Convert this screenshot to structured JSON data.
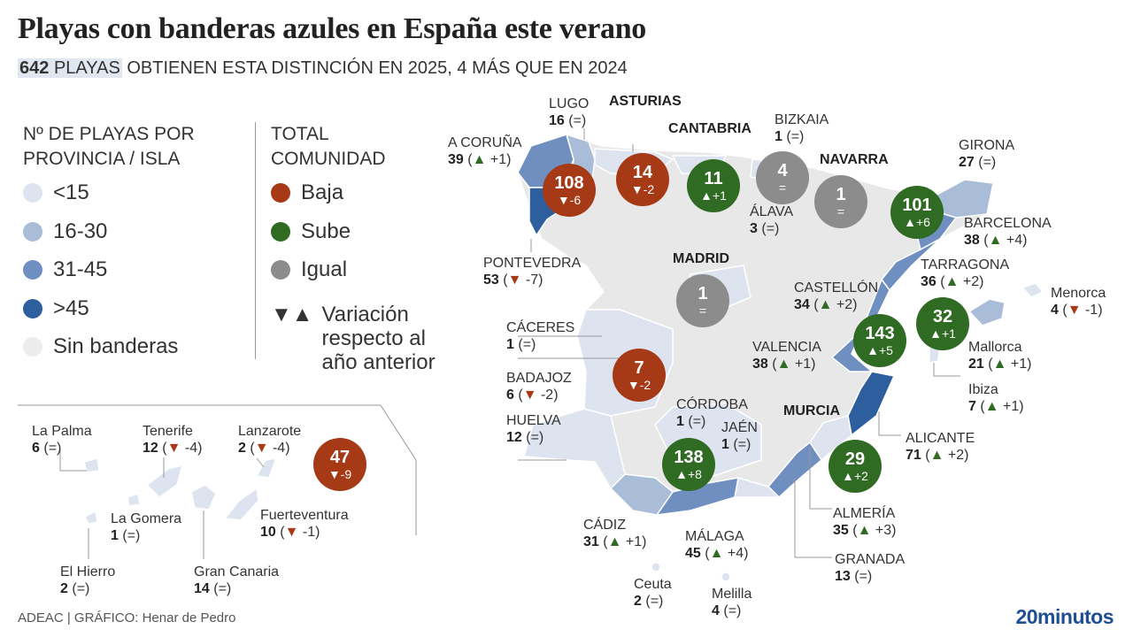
{
  "header": {
    "title": "Playas con banderas azules en España este verano",
    "subtitle_count": 642,
    "subtitle_unit": "PLAYAS",
    "subtitle_rest": "OBTIENEN ESTA DISTINCIÓN EN 2025, 4 MÁS QUE EN 2024"
  },
  "legend_province": {
    "title": "Nº DE PLAYAS POR PROVINCIA / ISLA",
    "items": [
      {
        "label": "<15",
        "color": "#dde4ef"
      },
      {
        "label": "16-30",
        "color": "#a9bcd8"
      },
      {
        "label": "31-45",
        "color": "#6f8fc0"
      },
      {
        "label": ">45",
        "color": "#2d5f9e"
      },
      {
        "label": "Sin banderas",
        "color": "#ececec"
      }
    ]
  },
  "legend_community": {
    "title": "TOTAL COMUNIDAD",
    "items": [
      {
        "label": "Baja",
        "color": "#a63a17"
      },
      {
        "label": "Sube",
        "color": "#2f6b22"
      },
      {
        "label": "Igual",
        "color": "#8c8c8c"
      }
    ],
    "variation_symbol": "▼▲",
    "variation_text": "Variación respecto al año anterior"
  },
  "provinces": [
    {
      "name": "LUGO",
      "count": 16,
      "change": "(=)"
    },
    {
      "name": "A CORUÑA",
      "count": 39,
      "change": "(▲ +1)"
    },
    {
      "name": "BIZKAIA",
      "count": 1,
      "change": "(=)"
    },
    {
      "name": "ÁLAVA",
      "count": 3,
      "change": "(=)"
    },
    {
      "name": "GIRONA",
      "count": 27,
      "change": "(=)"
    },
    {
      "name": "BARCELONA",
      "count": 38,
      "change": "(▲ +4)"
    },
    {
      "name": "TARRAGONA",
      "count": 36,
      "change": "(▲ +2)"
    },
    {
      "name": "Menorca",
      "count": 4,
      "change": "(▼ -1)"
    },
    {
      "name": "PONTEVEDRA",
      "count": 53,
      "change": "(▼ -7)"
    },
    {
      "name": "CASTELLÓN",
      "count": 34,
      "change": "(▲ +2)"
    },
    {
      "name": "CÁCERES",
      "count": 1,
      "change": "(=)"
    },
    {
      "name": "VALENCIA",
      "count": 38,
      "change": "(▲ +1)"
    },
    {
      "name": "Mallorca",
      "count": 21,
      "change": "(▲ +1)"
    },
    {
      "name": "BADAJOZ",
      "count": 6,
      "change": "(▼ -2)"
    },
    {
      "name": "Ibiza",
      "count": 7,
      "change": "(▲ +1)"
    },
    {
      "name": "CÓRDOBA",
      "count": 1,
      "change": "(=)"
    },
    {
      "name": "JAÉN",
      "count": 1,
      "change": "(=)"
    },
    {
      "name": "HUELVA",
      "count": 12,
      "change": "(=)"
    },
    {
      "name": "ALICANTE",
      "count": 71,
      "change": "(▲ +2)"
    },
    {
      "name": "ALMERÍA",
      "count": 35,
      "change": "(▲ +3)"
    },
    {
      "name": "CÁDIZ",
      "count": 31,
      "change": "(▲ +1)"
    },
    {
      "name": "MÁLAGA",
      "count": 45,
      "change": "(▲ +4)"
    },
    {
      "name": "GRANADA",
      "count": 13,
      "change": "(=)"
    },
    {
      "name": "Ceuta",
      "count": 2,
      "change": "(=)"
    },
    {
      "name": "Melilla",
      "count": 4,
      "change": "(=)"
    },
    {
      "name": "La Palma",
      "count": 6,
      "change": "(=)"
    },
    {
      "name": "Tenerife",
      "count": 12,
      "change": "(▼ -4)"
    },
    {
      "name": "Lanzarote",
      "count": 2,
      "change": "(▼ -4)"
    },
    {
      "name": "La Gomera",
      "count": 1,
      "change": "(=)"
    },
    {
      "name": "Fuerteventura",
      "count": 10,
      "change": "(▼ -1)"
    },
    {
      "name": "El Hierro",
      "count": 2,
      "change": "(=)"
    },
    {
      "name": "Gran Canaria",
      "count": 14,
      "change": "(=)"
    }
  ],
  "communities": [
    {
      "total": 108,
      "change": "▼-6",
      "color": "#a63a17"
    },
    {
      "name": "ASTURIAS",
      "total": 14,
      "change": "▼-2",
      "color": "#a63a17"
    },
    {
      "name": "CANTABRIA",
      "total": 11,
      "change": "▲+1",
      "color": "#2f6b22"
    },
    {
      "total": 4,
      "change": "=",
      "color": "#8c8c8c"
    },
    {
      "name": "NAVARRA",
      "total": 1,
      "change": "=",
      "color": "#8c8c8c"
    },
    {
      "total": 101,
      "change": "▲+6",
      "color": "#2f6b22"
    },
    {
      "name": "MADRID",
      "total": 1,
      "change": "=",
      "color": "#8c8c8c"
    },
    {
      "total": 32,
      "change": "▲+1",
      "color": "#2f6b22"
    },
    {
      "total": 143,
      "change": "▲+5",
      "color": "#2f6b22"
    },
    {
      "total": 7,
      "change": "▼-2",
      "color": "#a63a17"
    },
    {
      "total": 138,
      "change": "▲+8",
      "color": "#2f6b22"
    },
    {
      "name": "MURCIA",
      "total": 29,
      "change": "▲+2",
      "color": "#2f6b22"
    },
    {
      "total": 47,
      "change": "▼-9",
      "color": "#a63a17"
    }
  ],
  "footer": {
    "source": "ADEAC  |  GRÁFICO: Henar de Pedro",
    "logo": "20minutos"
  }
}
